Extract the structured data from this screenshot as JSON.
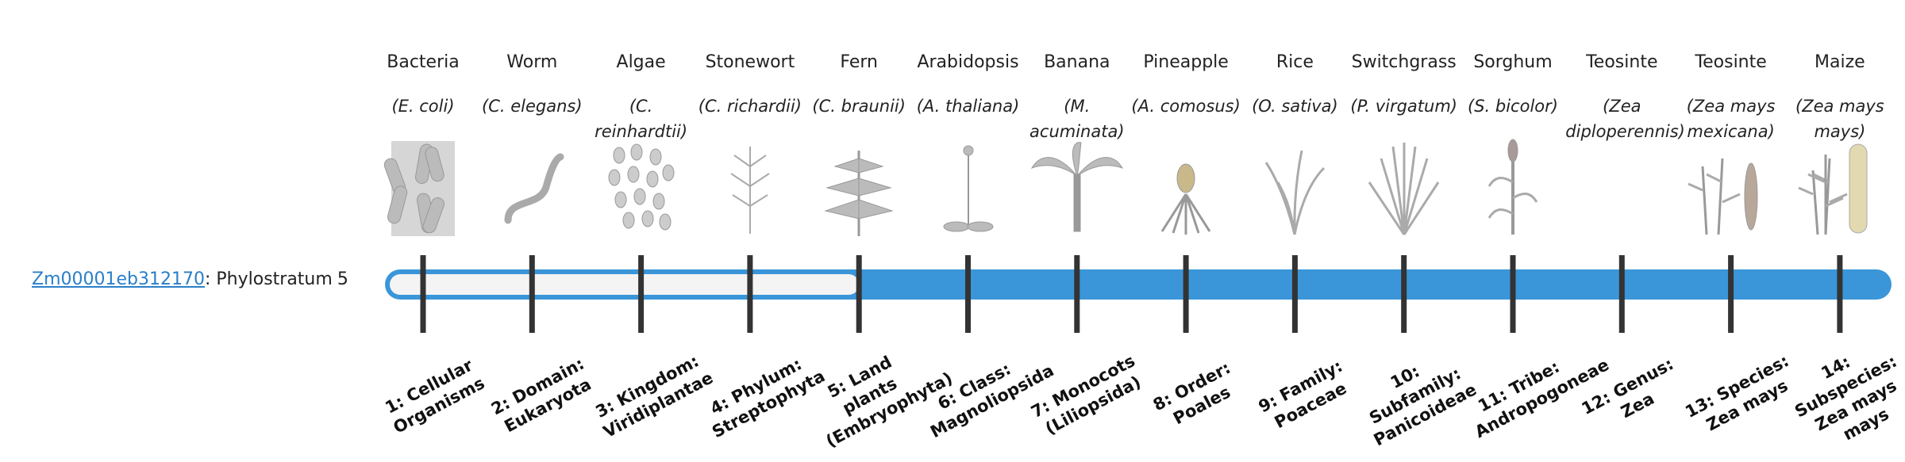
{
  "gene": "Zm00001eb312170",
  "label": ": Phylostratum",
  "phylostratum": 5,
  "organisms": [
    {
      "common": "Bacteria",
      "latin": "(E. coli)",
      "stratum": "1: Cellular Organisms"
    },
    {
      "common": "Worm",
      "latin": "(C. elegans)",
      "stratum": "2: Domain: Eukaryota"
    },
    {
      "common": "Algae",
      "latin": "(C. reinhardtii)",
      "stratum": "3: Kingdom: Viridiplantae"
    },
    {
      "common": "Stonewort",
      "latin": "(C. richardii)",
      "stratum": "4: Phylum: Streptophyta"
    },
    {
      "common": "Fern",
      "latin": "(C. braunii)",
      "stratum": "5: Land plants (Embryophyta)"
    },
    {
      "common": "Arabidopsis",
      "latin": "(A. thaliana)",
      "stratum": "6: Class: Magnoliopsida"
    },
    {
      "common": "Banana",
      "latin": "(M. acuminata)",
      "stratum": "7: Monocots (Liliopsida)"
    },
    {
      "common": "Pineapple",
      "latin": "(A. comosus)",
      "stratum": "8: Order: Poales"
    },
    {
      "common": "Rice",
      "latin": "(O. sativa)",
      "stratum": "9: Family: Poaceae"
    },
    {
      "common": "Switchgrass",
      "latin": "(P. virgatum)",
      "stratum": "10: Subfamily: Panicoideae"
    },
    {
      "common": "Sorghum",
      "latin": "(S. bicolor)",
      "stratum": "11: Tribe: Andropogoneae"
    },
    {
      "common": "Teosinte",
      "latin": "(Zea diploperennis)",
      "stratum": "12: Genus: Zea"
    },
    {
      "common": "Teosinte",
      "latin": "(Zea mays mexicana)",
      "stratum": "13: Species: Zea mays"
    },
    {
      "common": "Maize",
      "latin": "(Zea mays mays)",
      "stratum": "14: Subspecies: Zea mays mays"
    }
  ]
}
